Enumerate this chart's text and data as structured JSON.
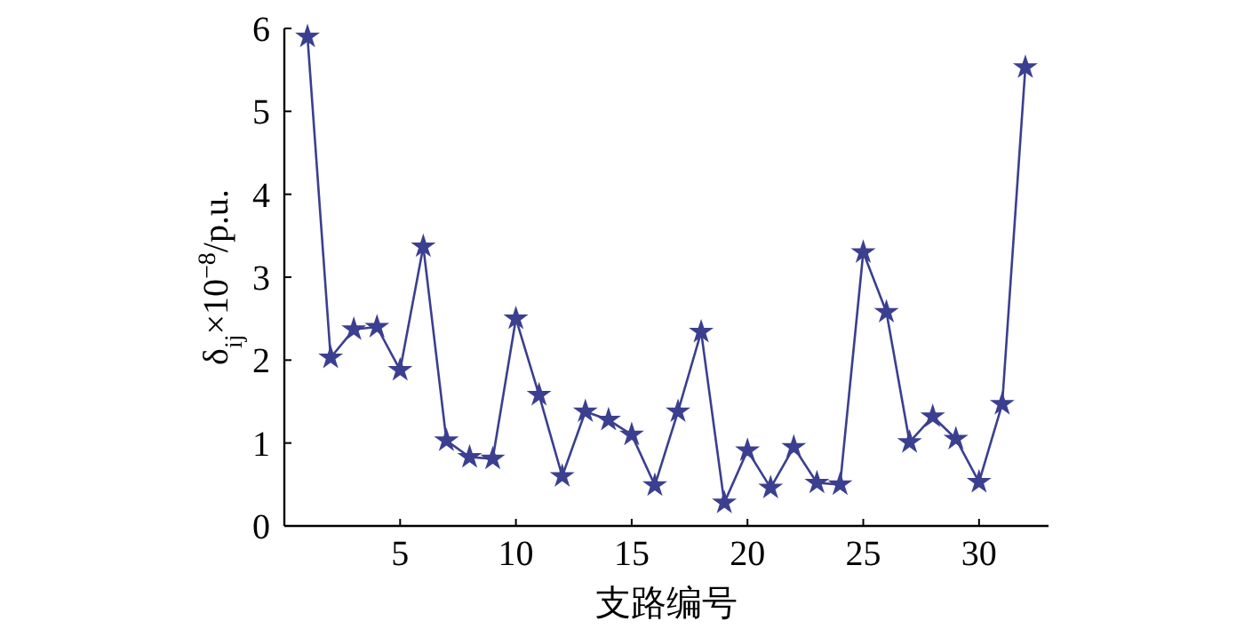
{
  "chart_data": {
    "type": "line",
    "xlabel": "支路编号",
    "ylabel": "δ$_{ij}$×10$^{−8}$/p.u.",
    "x": [
      1,
      2,
      3,
      4,
      5,
      6,
      7,
      8,
      9,
      10,
      11,
      12,
      13,
      14,
      15,
      16,
      17,
      18,
      19,
      20,
      21,
      22,
      23,
      24,
      25,
      26,
      27,
      28,
      29,
      30,
      31,
      32
    ],
    "series": [
      {
        "color": "#3b3f8f",
        "values": [
          5.9,
          2.03,
          2.37,
          2.4,
          1.88,
          3.37,
          1.03,
          0.83,
          0.81,
          2.5,
          1.58,
          0.6,
          1.38,
          1.28,
          1.1,
          0.49,
          1.38,
          2.34,
          0.28,
          0.91,
          0.46,
          0.95,
          0.52,
          0.5,
          3.3,
          2.58,
          1.01,
          1.32,
          1.05,
          0.53,
          1.47,
          5.53
        ]
      }
    ],
    "xlim": [
      0,
      33
    ],
    "xticks": [
      5,
      10,
      15,
      20,
      25,
      30
    ],
    "ylim": [
      0,
      6
    ],
    "yticks": [
      0,
      1,
      2,
      3,
      4,
      5,
      6
    ],
    "marker": "star",
    "line_style": "solid",
    "grid": false
  }
}
